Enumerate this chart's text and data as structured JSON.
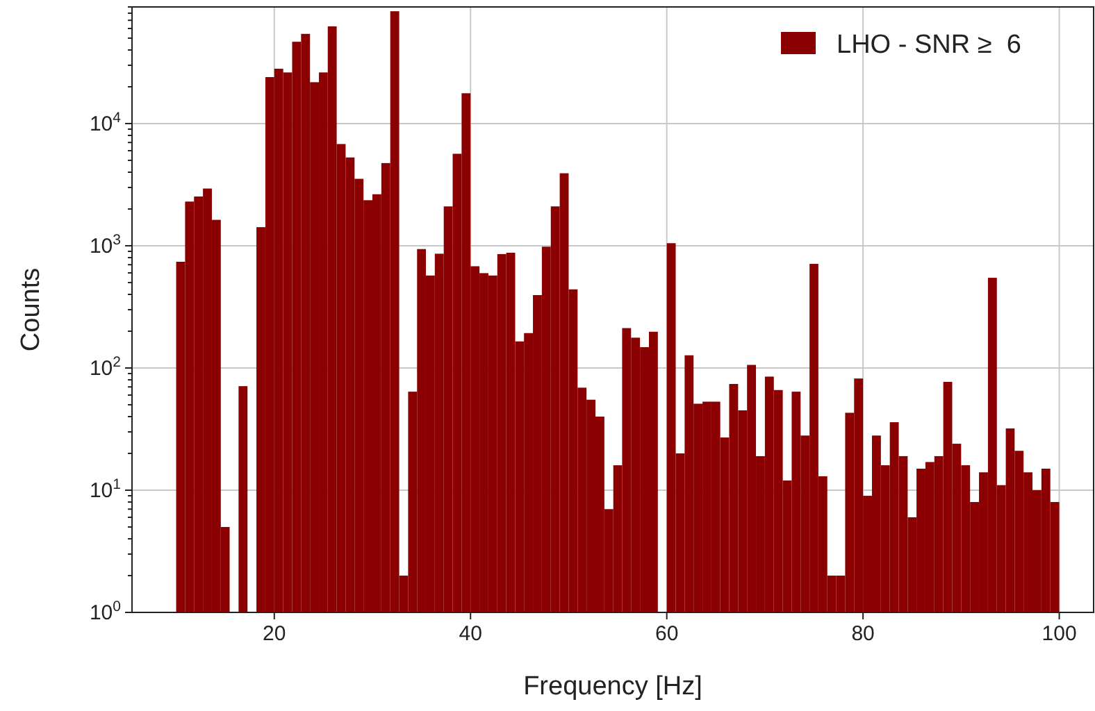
{
  "chart_data": {
    "type": "histogram",
    "xlabel": "Frequency [Hz]",
    "ylabel": "Counts",
    "bins": [
      10,
      10.91,
      11.82,
      12.73,
      13.64,
      14.55,
      15.45,
      16.36,
      17.27,
      18.18,
      19.09,
      20,
      20.91,
      21.82,
      22.73,
      23.64,
      24.55,
      25.45,
      26.36,
      27.27,
      28.18,
      29.09,
      30,
      30.91,
      31.82,
      32.73,
      33.64,
      34.55,
      35.45,
      36.36,
      37.27,
      38.18,
      39.09,
      40,
      40.91,
      41.82,
      42.73,
      43.64,
      44.55,
      45.45,
      46.36,
      47.27,
      48.18,
      49.09,
      50,
      50.91,
      51.82,
      52.73,
      53.64,
      54.55,
      55.45,
      56.36,
      57.27,
      58.18,
      59.09,
      60,
      60.91,
      61.82,
      62.73,
      63.64,
      64.55,
      65.45,
      66.36,
      67.27,
      68.18,
      69.09,
      70,
      70.91,
      71.82,
      72.73,
      73.64,
      74.55,
      75.45,
      76.36,
      77.27,
      78.18,
      79.09,
      80,
      80.91,
      81.82,
      82.73,
      83.64,
      84.55,
      85.45,
      86.36,
      87.27,
      88.18,
      89.09,
      90,
      90.91,
      91.82,
      92.73,
      93.64,
      94.55,
      95.45,
      96.36,
      97.27,
      98.18,
      99.09,
      100
    ],
    "series": [
      {
        "name": "LHO - SNR ≥  6",
        "color": "#8b0000",
        "values": [
          740,
          2300,
          2530,
          2940,
          1630,
          5,
          null,
          71,
          null,
          1420,
          24000,
          28100,
          26200,
          46700,
          54200,
          21800,
          26200,
          62400,
          6800,
          5280,
          3530,
          2360,
          2640,
          4750,
          83000,
          2,
          64,
          940,
          571,
          861,
          2100,
          5660,
          17700,
          680,
          597,
          571,
          855,
          877,
          165,
          193,
          395,
          983,
          2100,
          3920,
          440,
          69,
          55,
          40,
          7,
          16,
          212,
          177,
          148,
          198,
          null,
          1050,
          20,
          127,
          51,
          53,
          53,
          27,
          74,
          45,
          106,
          19,
          85,
          66,
          12,
          64,
          28,
          711,
          13,
          2,
          2,
          43,
          82,
          9,
          28,
          16,
          36,
          19,
          6,
          15,
          17,
          19,
          77,
          24,
          16,
          8,
          14,
          547,
          11,
          32,
          21,
          14,
          10,
          15,
          8
        ]
      }
    ],
    "log": "y",
    "grid": true,
    "legend": "top right",
    "xlim": [
      5.5,
      103.5
    ],
    "xticks": [
      20,
      40,
      60,
      80,
      100
    ],
    "ylim": [
      1,
      90000
    ],
    "yticks": [
      {
        "value": 1,
        "label": "10$^{0}$"
      },
      {
        "value": 2,
        "label": null
      },
      {
        "value": 3,
        "label": null
      },
      {
        "value": 4,
        "label": null
      },
      {
        "value": 5,
        "label": null
      },
      {
        "value": 6,
        "label": null
      },
      {
        "value": 7,
        "label": null
      },
      {
        "value": 8,
        "label": null
      },
      {
        "value": 9,
        "label": null
      },
      {
        "value": 10,
        "label": "10$^{1}$"
      },
      {
        "value": 20,
        "label": null
      },
      {
        "value": 30,
        "label": null
      },
      {
        "value": 40,
        "label": null
      },
      {
        "value": 50,
        "label": null
      },
      {
        "value": 60,
        "label": null
      },
      {
        "value": 70,
        "label": null
      },
      {
        "value": 80,
        "label": null
      },
      {
        "value": 90,
        "label": null
      },
      {
        "value": 100,
        "label": "10$^{2}$"
      },
      {
        "value": 200,
        "label": null
      },
      {
        "value": 300,
        "label": null
      },
      {
        "value": 400,
        "label": null
      },
      {
        "value": 500,
        "label": null
      },
      {
        "value": 600,
        "label": null
      },
      {
        "value": 700,
        "label": null
      },
      {
        "value": 800,
        "label": null
      },
      {
        "value": 900,
        "label": null
      },
      {
        "value": 1000,
        "label": "10$^{3}$"
      },
      {
        "value": 2000,
        "label": null
      },
      {
        "value": 3000,
        "label": null
      },
      {
        "value": 4000,
        "label": null
      },
      {
        "value": 5000,
        "label": null
      },
      {
        "value": 6000,
        "label": null
      },
      {
        "value": 7000,
        "label": null
      },
      {
        "value": 8000,
        "label": null
      },
      {
        "value": 9000,
        "label": null
      },
      {
        "value": 10000,
        "label": "10$^{4}$"
      },
      {
        "value": 20000,
        "label": null
      },
      {
        "value": 30000,
        "label": null
      },
      {
        "value": 40000,
        "label": null
      },
      {
        "value": 50000,
        "label": null
      },
      {
        "value": 60000,
        "label": null
      },
      {
        "value": 70000,
        "label": null
      },
      {
        "value": 80000,
        "label": null
      },
      {
        "value": 90000,
        "label": null
      }
    ]
  }
}
